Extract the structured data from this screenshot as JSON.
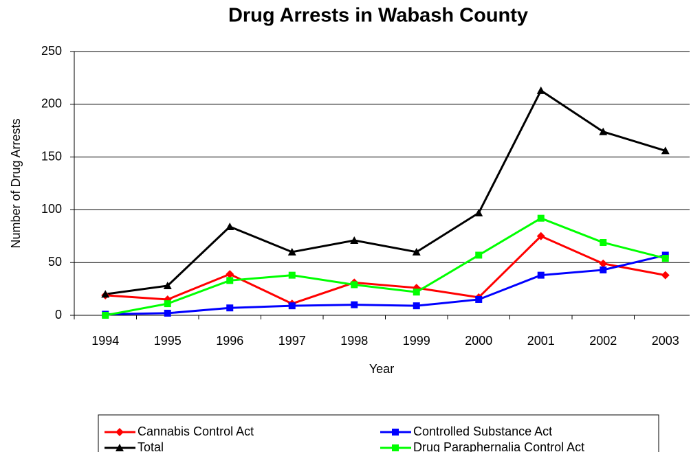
{
  "chart_data": {
    "type": "line",
    "title": "Drug Arrests in Wabash County",
    "x_label": "Year",
    "y_label": "Number of Drug Arrests",
    "categories": [
      "1994",
      "1995",
      "1996",
      "1997",
      "1998",
      "1999",
      "2000",
      "2001",
      "2002",
      "2003"
    ],
    "series": [
      {
        "name": "Cannabis Control Act",
        "color": "#ff0000",
        "marker": "diamond",
        "values": [
          19,
          15,
          39,
          11,
          31,
          26,
          17,
          75,
          49,
          38
        ]
      },
      {
        "name": "Controlled Substance Act",
        "color": "#0000ff",
        "marker": "square",
        "values": [
          1,
          2,
          7,
          9,
          10,
          9,
          15,
          38,
          43,
          57
        ]
      },
      {
        "name": "Total",
        "color": "#000000",
        "marker": "triangle",
        "values": [
          20,
          28,
          84,
          60,
          71,
          60,
          97,
          213,
          174,
          156
        ]
      },
      {
        "name": "Drug Paraphernalia Control Act",
        "color": "#00ff00",
        "marker": "square",
        "values": [
          0,
          11,
          33,
          38,
          29,
          22,
          57,
          92,
          69,
          54
        ]
      }
    ],
    "ylim": [
      0,
      250
    ],
    "yticks": [
      0,
      50,
      100,
      150,
      200,
      250
    ],
    "grid": true,
    "legend": "bottom"
  }
}
